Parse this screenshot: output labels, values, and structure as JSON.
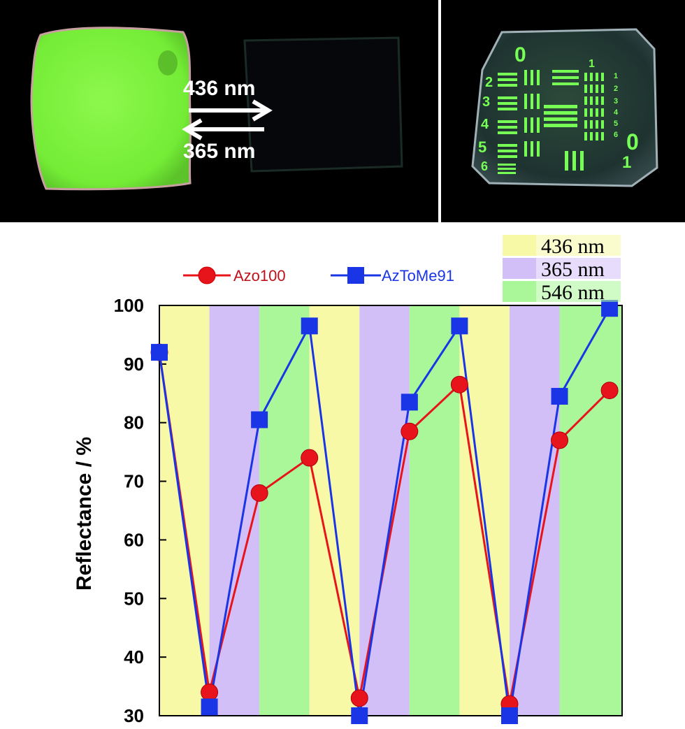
{
  "photos": {
    "arrow_top_label": "436 nm",
    "arrow_bottom_label": "365 nm",
    "pattern_labels": [
      "0",
      "1",
      "2",
      "3",
      "4",
      "5",
      "6",
      "0",
      "1",
      "2",
      "3",
      "4",
      "5",
      "6",
      "1"
    ]
  },
  "band_legend": [
    {
      "label": "436 nm",
      "color": "#f7f9a6"
    },
    {
      "label": "365 nm",
      "color": "#d3bff7"
    },
    {
      "label": "546 nm",
      "color": "#a9f798"
    }
  ],
  "colors": {
    "Azo100": "#e8141b",
    "AzToMe91": "#1a35e6",
    "photo_background": "#000000",
    "film_green": "#7cf03c"
  },
  "chart_data": {
    "type": "line",
    "title": "",
    "xlabel": "",
    "ylabel": "Reflectance / %",
    "ylim": [
      30,
      100
    ],
    "yticks": [
      30,
      40,
      50,
      60,
      70,
      80,
      90,
      100
    ],
    "grid": false,
    "legend_position": "top-left",
    "bands": [
      "436 nm",
      "365 nm",
      "546 nm",
      "436 nm",
      "365 nm",
      "546 nm",
      "436 nm",
      "365 nm",
      "546 nm"
    ],
    "x": [
      0,
      1,
      2,
      3,
      4,
      5,
      6,
      7,
      8,
      9
    ],
    "series": [
      {
        "name": "Azo100",
        "marker": "circle",
        "values": [
          92,
          34,
          68,
          74,
          33,
          78.5,
          86.5,
          32,
          77,
          85.5
        ]
      },
      {
        "name": "AzToMe91",
        "marker": "square",
        "values": [
          92,
          31.5,
          80.5,
          96.5,
          30,
          83.5,
          96.5,
          30,
          84.5,
          99.5
        ]
      }
    ]
  }
}
